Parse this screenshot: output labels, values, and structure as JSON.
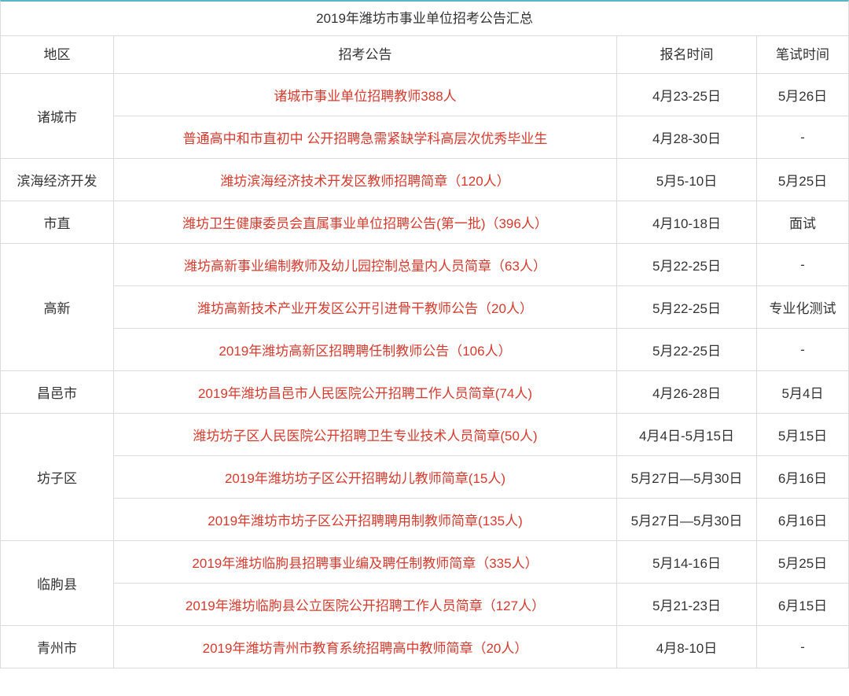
{
  "colors": {
    "table_top_border": "#5bb5c7",
    "cell_border": "#dcdcdc",
    "link_text": "#d43b2e",
    "text": "#333333",
    "background": "#ffffff"
  },
  "title": "2019年潍坊市事业单位招考公告汇总",
  "columns": [
    "地区",
    "招考公告",
    "报名时间",
    "笔试时间"
  ],
  "regions": [
    {
      "name": "诸城市",
      "rows": [
        {
          "notice": "诸城市事业单位招聘教师388人",
          "signup": "4月23-25日",
          "exam": "5月26日"
        },
        {
          "notice": "普通高中和市直初中 公开招聘急需紧缺学科高层次优秀毕业生",
          "signup": "4月28-30日",
          "exam": "-"
        }
      ]
    },
    {
      "name": "滨海经济开发",
      "rows": [
        {
          "notice": "潍坊滨海经济技术开发区教师招聘简章（120人）",
          "signup": "5月5-10日",
          "exam": "5月25日"
        }
      ]
    },
    {
      "name": "市直",
      "rows": [
        {
          "notice": "潍坊卫生健康委员会直属事业单位招聘公告(第一批)（396人）",
          "signup": "4月10-18日",
          "exam": "面试"
        }
      ]
    },
    {
      "name": "高新",
      "rows": [
        {
          "notice": "潍坊高新事业编制教师及幼儿园控制总量内人员简章（63人）",
          "signup": "5月22-25日",
          "exam": "-"
        },
        {
          "notice": "潍坊高新技术产业开发区公开引进骨干教师公告（20人）",
          "signup": "5月22-25日",
          "exam": "专业化测试"
        },
        {
          "notice": "2019年潍坊高新区招聘聘任制教师公告（106人）",
          "signup": "5月22-25日",
          "exam": "-"
        }
      ]
    },
    {
      "name": "昌邑市",
      "rows": [
        {
          "notice": "2019年潍坊昌邑市人民医院公开招聘工作人员简章(74人)",
          "signup": "4月26-28日",
          "exam": "5月4日"
        }
      ]
    },
    {
      "name": "坊子区",
      "rows": [
        {
          "notice": "潍坊坊子区人民医院公开招聘卫生专业技术人员简章(50人)",
          "signup": "4月4日-5月15日",
          "exam": "5月15日"
        },
        {
          "notice": "2019年潍坊坊子区公开招聘幼儿教师简章(15人)",
          "signup": "5月27日—5月30日",
          "exam": "6月16日"
        },
        {
          "notice": "2019年潍坊市坊子区公开招聘聘用制教师简章(135人)",
          "signup": "5月27日—5月30日",
          "exam": "6月16日"
        }
      ]
    },
    {
      "name": "临朐县",
      "rows": [
        {
          "notice": "2019年潍坊临朐县招聘事业编及聘任制教师简章（335人）",
          "signup": "5月14-16日",
          "exam": "5月25日"
        },
        {
          "notice": "2019年潍坊临朐县公立医院公开招聘工作人员简章（127人）",
          "signup": "5月21-23日",
          "exam": "6月15日"
        }
      ]
    },
    {
      "name": "青州市",
      "rows": [
        {
          "notice": "2019年潍坊青州市教育系统招聘高中教师简章（20人）",
          "signup": "4月8-10日",
          "exam": "-"
        }
      ]
    }
  ]
}
